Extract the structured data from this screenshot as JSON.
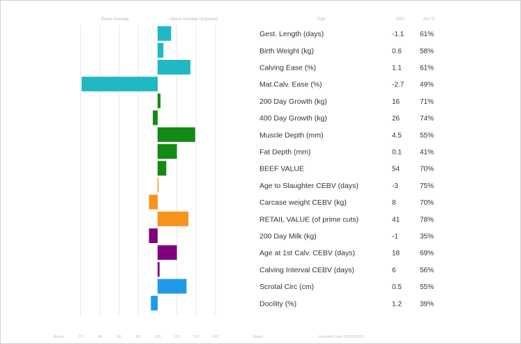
{
  "header": {
    "below_average": "Below Average",
    "above_average": "Above Average (Superior)",
    "trait": "Trait",
    "ebv": "EBV",
    "acc": "Acc %"
  },
  "footer": {
    "left_label": "Breed",
    "right_label": "Breed",
    "analysis_date": "Analysis Date: 23/03/2020"
  },
  "chart_data": {
    "type": "bar",
    "orientation": "horizontal",
    "x_ticks": [
      20,
      40,
      60,
      80,
      100,
      120,
      140,
      160
    ],
    "center_value": 100,
    "xlim": [
      0,
      170
    ],
    "grid": true,
    "rows": [
      {
        "trait": "Gest. Length (days)",
        "ebv": "-1.1",
        "acc": "61%",
        "index": 114,
        "color": "#1fb8c3"
      },
      {
        "trait": "Birth Weight (kg)",
        "ebv": "0.6",
        "acc": "58%",
        "index": 106,
        "color": "#1fb8c3"
      },
      {
        "trait": "Calving Ease (%)",
        "ebv": "1.1",
        "acc": "61%",
        "index": 134,
        "color": "#1fb8c3"
      },
      {
        "trait": "Mat.Calv. Ease (%)",
        "ebv": "-2.7",
        "acc": "49%",
        "index": 21,
        "color": "#1fb8c3"
      },
      {
        "trait": "200 Day Growth (kg)",
        "ebv": "16",
        "acc": "71%",
        "index": 103,
        "color": "#138a13"
      },
      {
        "trait": "400 Day Growth (kg)",
        "ebv": "26",
        "acc": "74%",
        "index": 95,
        "color": "#138a13"
      },
      {
        "trait": "Muscle Depth (mm)",
        "ebv": "4.5",
        "acc": "55%",
        "index": 139,
        "color": "#138a13"
      },
      {
        "trait": "Fat Depth (mm)",
        "ebv": "0.1",
        "acc": "41%",
        "index": 120,
        "color": "#138a13"
      },
      {
        "trait": "BEEF VALUE",
        "ebv": "54",
        "acc": "70%",
        "index": 109,
        "color": "#138a13"
      },
      {
        "trait": "Age to Slaughter CEBV (days)",
        "ebv": "-3",
        "acc": "75%",
        "index": 101,
        "color": "#f7941d"
      },
      {
        "trait": "Carcase weight CEBV (kg)",
        "ebv": "8",
        "acc": "70%",
        "index": 91,
        "color": "#f7941d"
      },
      {
        "trait": "RETAIL VALUE (of prime cuts)",
        "ebv": "41",
        "acc": "78%",
        "index": 132,
        "color": "#f7941d"
      },
      {
        "trait": "200 Day Milk (kg)",
        "ebv": "-1",
        "acc": "35%",
        "index": 91,
        "color": "#800080"
      },
      {
        "trait": "Age at 1st Calv. CEBV (days)",
        "ebv": "18",
        "acc": "69%",
        "index": 120,
        "color": "#800080"
      },
      {
        "trait": "Calving Interval CEBV (days)",
        "ebv": "6",
        "acc": "56%",
        "index": 102,
        "color": "#800080"
      },
      {
        "trait": "Scrotal Circ (cm)",
        "ebv": "0.5",
        "acc": "55%",
        "index": 130,
        "color": "#1e9be8"
      },
      {
        "trait": "Docility (%)",
        "ebv": "1.2",
        "acc": "39%",
        "index": 93,
        "color": "#1e9be8"
      }
    ]
  }
}
